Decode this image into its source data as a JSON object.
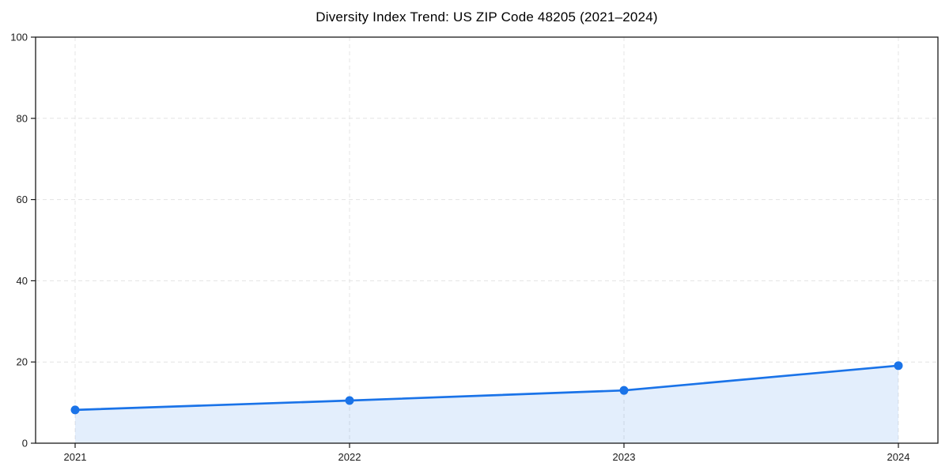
{
  "chart_data": {
    "type": "line",
    "title": "Diversity Index Trend: US ZIP Code 48205 (2021–2024)",
    "categories": [
      "2021",
      "2022",
      "2023",
      "2024"
    ],
    "series": [
      {
        "name": "Diversity Index",
        "values": [
          8.2,
          10.5,
          13.0,
          19.1
        ]
      }
    ],
    "xlabel": "",
    "ylabel": "",
    "ylim": [
      0,
      100
    ],
    "yticks": [
      0,
      20,
      40,
      60,
      80,
      100
    ],
    "grid": true,
    "grid_style": "dashed",
    "legend_position": "none",
    "marker": "circle",
    "area_fill": true,
    "colors": {
      "line": "#1a73e8",
      "marker": "#1a73e8",
      "fill": "#1a73e8",
      "fill_opacity": 0.12,
      "grid": "#e4e4e4",
      "axis": "#1a1a1a",
      "tick_text": "#1a1a1a",
      "background": "#ffffff"
    }
  }
}
